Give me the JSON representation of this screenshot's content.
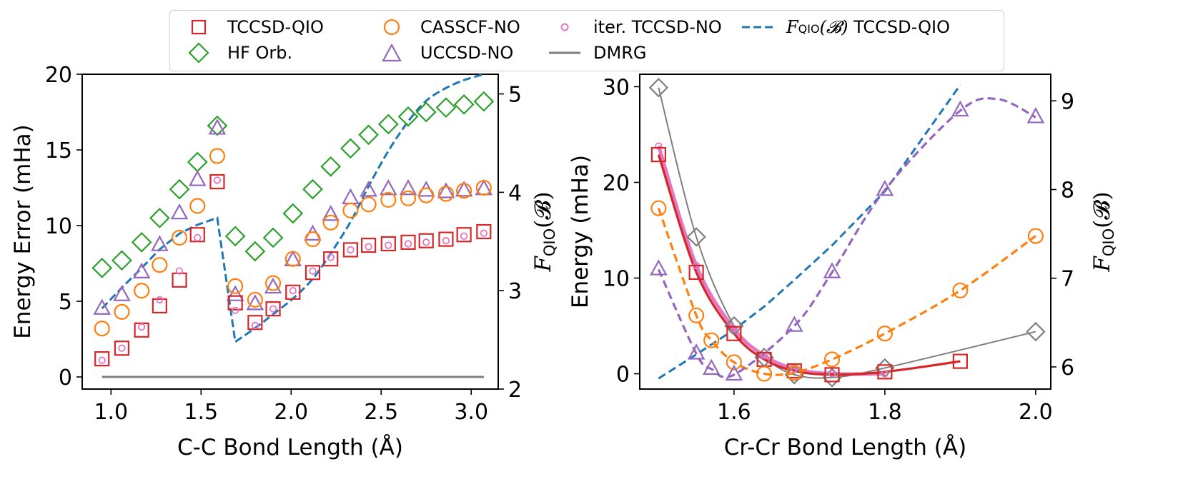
{
  "legend": {
    "items": [
      {
        "key": "tccsd_qio",
        "label": "TCCSD-QIO",
        "marker": "square",
        "color": "#d62728",
        "line": "none"
      },
      {
        "key": "hf",
        "label": "HF Orb.",
        "marker": "diamond",
        "color": "#2ca02c",
        "line": "none"
      },
      {
        "key": "casscf",
        "label": "CASSCF-NO",
        "marker": "circle",
        "color": "#ff7f0e",
        "line": "none"
      },
      {
        "key": "uccsd",
        "label": "UCCSD-NO",
        "marker": "triangle",
        "color": "#9467bd",
        "line": "none"
      },
      {
        "key": "iter",
        "label": "iter. TCCSD-NO",
        "marker": "small-circle",
        "color": "#e377c2",
        "line": "none"
      },
      {
        "key": "dmrg",
        "label": "DMRG",
        "marker": "none",
        "color": "#7f7f7f",
        "line": "solid"
      },
      {
        "key": "fqio",
        "label_prefix": "F",
        "label_sub": "QIO",
        "label_arg": "(𝓑)",
        "label_suffix": " TCCSD-QIO",
        "marker": "none",
        "color": "#1f77b4",
        "line": "dashed"
      }
    ]
  },
  "chart_data": [
    {
      "type": "scatter",
      "panel": "left",
      "title": "",
      "xlabel": "C-C Bond Length (Å)",
      "ylabel": "Energy Error (mHa)",
      "y2label": "F_QIO(B)",
      "xlim": [
        0.84,
        3.15
      ],
      "ylim": [
        -0.8,
        20
      ],
      "y2lim": [
        2.0,
        5.2
      ],
      "xticks": [
        "1.0",
        "1.5",
        "2.0",
        "2.5",
        "3.0"
      ],
      "xtick_values": [
        1.0,
        1.5,
        2.0,
        2.5,
        3.0
      ],
      "yticks": [
        "0",
        "5",
        "10",
        "15",
        "20"
      ],
      "ytick_values": [
        0,
        5,
        10,
        15,
        20
      ],
      "y2ticks": [
        "2",
        "3",
        "4",
        "5"
      ],
      "y2tick_values": [
        2,
        3,
        4,
        5
      ],
      "grid": false,
      "x": [
        0.95,
        1.06,
        1.17,
        1.27,
        1.38,
        1.48,
        1.59,
        1.69,
        1.8,
        1.9,
        2.01,
        2.12,
        2.22,
        2.33,
        2.43,
        2.54,
        2.65,
        2.75,
        2.86,
        2.96,
        3.07
      ],
      "series": [
        {
          "name": "TCCSD-QIO",
          "key": "tccsd_qio",
          "values": [
            1.2,
            1.9,
            3.1,
            4.7,
            6.4,
            9.4,
            12.9,
            4.9,
            3.6,
            4.5,
            5.6,
            6.9,
            7.8,
            8.4,
            8.7,
            8.8,
            8.9,
            9.0,
            9.1,
            9.4,
            9.6
          ]
        },
        {
          "name": "HF Orb.",
          "key": "hf",
          "values": [
            7.2,
            7.7,
            8.9,
            10.5,
            12.4,
            14.2,
            16.6,
            9.3,
            8.3,
            9.2,
            10.8,
            12.4,
            13.9,
            15.1,
            16.0,
            16.7,
            17.2,
            17.5,
            17.8,
            18.0,
            18.2
          ]
        },
        {
          "name": "CASSCF-NO",
          "key": "casscf",
          "values": [
            3.2,
            4.3,
            5.7,
            7.4,
            9.2,
            11.3,
            14.6,
            6.0,
            5.1,
            6.2,
            7.8,
            9.1,
            10.2,
            11.0,
            11.4,
            11.7,
            11.8,
            12.0,
            12.1,
            12.3,
            12.5
          ]
        },
        {
          "name": "UCCSD-NO",
          "key": "uccsd",
          "values": [
            4.5,
            5.4,
            6.9,
            8.7,
            10.8,
            13.0,
            16.4,
            5.4,
            4.8,
            5.9,
            7.7,
            9.4,
            10.7,
            11.8,
            12.3,
            12.4,
            12.4,
            12.3,
            12.2,
            12.3,
            12.4
          ]
        },
        {
          "name": "iter. TCCSD-NO",
          "key": "iter",
          "values": [
            1.1,
            1.9,
            3.3,
            5.1,
            7.0,
            9.2,
            13.0,
            4.4,
            3.4,
            4.5,
            5.7,
            7.0,
            7.9,
            8.4,
            8.6,
            8.7,
            8.8,
            8.9,
            9.0,
            9.3,
            9.5
          ]
        },
        {
          "name": "DMRG",
          "key": "dmrg",
          "values": [
            0,
            0,
            0,
            0,
            0,
            0,
            0,
            0,
            0,
            0,
            0,
            0,
            0,
            0,
            0,
            0,
            0,
            0,
            0,
            0,
            0
          ]
        }
      ],
      "secondary": {
        "name": "F_QIO(B) TCCSD-QIO",
        "key": "fqio",
        "x": [
          0.95,
          1.06,
          1.17,
          1.27,
          1.38,
          1.48,
          1.59,
          1.69,
          1.8,
          1.9,
          2.01,
          2.12,
          2.22,
          2.33,
          2.43,
          2.54,
          2.65,
          2.75,
          2.86,
          2.96,
          3.07
        ],
        "values": [
          2.82,
          3.03,
          3.23,
          3.42,
          3.58,
          3.67,
          3.74,
          2.48,
          2.62,
          2.76,
          2.92,
          3.12,
          3.38,
          3.7,
          4.06,
          4.42,
          4.72,
          4.93,
          5.06,
          5.14,
          5.2
        ]
      }
    },
    {
      "type": "line",
      "panel": "right",
      "title": "",
      "xlabel": "Cr-Cr Bond Length (Å)",
      "ylabel": "Energy (mHa)",
      "y2label": "F_QIO(B)",
      "xlim": [
        1.475,
        2.02
      ],
      "ylim": [
        -1.6,
        31.3
      ],
      "y2lim": [
        5.75,
        9.3
      ],
      "xticks": [
        "1.6",
        "1.8",
        "2.0"
      ],
      "xtick_values": [
        1.6,
        1.8,
        2.0
      ],
      "yticks": [
        "0",
        "10",
        "20",
        "30"
      ],
      "ytick_values": [
        0,
        10,
        20,
        30
      ],
      "y2ticks": [
        "6",
        "7",
        "8",
        "9"
      ],
      "y2tick_values": [
        6,
        7,
        8,
        9
      ],
      "grid": false,
      "series": [
        {
          "name": "HF Orb. (gray)",
          "key": "hf_gray",
          "color": "#7f7f7f",
          "style": "solid-thin",
          "x": [
            1.5,
            1.55,
            1.6,
            1.64,
            1.68,
            1.73,
            1.8,
            2.0
          ],
          "values": [
            29.9,
            14.3,
            5.0,
            1.7,
            -0.1,
            -0.4,
            0.6,
            4.4
          ]
        },
        {
          "name": "iter. TCCSD-NO",
          "key": "iter",
          "color": "#e377c2",
          "style": "solid-thick",
          "x": [
            1.5,
            1.55,
            1.6,
            1.64,
            1.68,
            1.73,
            1.8
          ],
          "values": [
            23.8,
            11.3,
            4.7,
            1.9,
            0.5,
            0.0,
            0.0
          ]
        },
        {
          "name": "TCCSD-QIO",
          "key": "tccsd_qio",
          "color": "#d62728",
          "style": "solid",
          "x": [
            1.5,
            1.55,
            1.6,
            1.64,
            1.68,
            1.73,
            1.8,
            1.9
          ],
          "values": [
            22.9,
            10.6,
            4.2,
            1.5,
            0.3,
            -0.1,
            0.2,
            1.3
          ]
        },
        {
          "name": "CASSCF-NO",
          "key": "casscf",
          "color": "#ff7f0e",
          "style": "dashed",
          "x": [
            1.5,
            1.55,
            1.57,
            1.6,
            1.64,
            1.68,
            1.73,
            1.8,
            1.9,
            2.0
          ],
          "values": [
            17.3,
            6.1,
            3.5,
            1.2,
            0.0,
            0.1,
            1.5,
            4.2,
            8.7,
            14.4
          ]
        },
        {
          "name": "UCCSD-NO",
          "key": "uccsd",
          "color": "#9467bd",
          "style": "dashed",
          "x": [
            1.5,
            1.55,
            1.57,
            1.6,
            1.68,
            1.73,
            1.8,
            1.9,
            2.0
          ],
          "values": [
            10.9,
            2.1,
            0.5,
            -0.1,
            5.0,
            10.6,
            19.2,
            27.5,
            26.8
          ]
        }
      ],
      "uccsd_curve_peak": {
        "x": 1.95,
        "value": 28.7
      },
      "secondary": {
        "name": "F_QIO(B) TCCSD-QIO",
        "key": "fqio",
        "x": [
          1.5,
          1.55,
          1.6,
          1.64,
          1.68,
          1.73,
          1.8,
          1.9
        ],
        "values": [
          5.87,
          6.14,
          6.42,
          6.68,
          6.98,
          7.37,
          7.98,
          9.18
        ]
      }
    }
  ]
}
